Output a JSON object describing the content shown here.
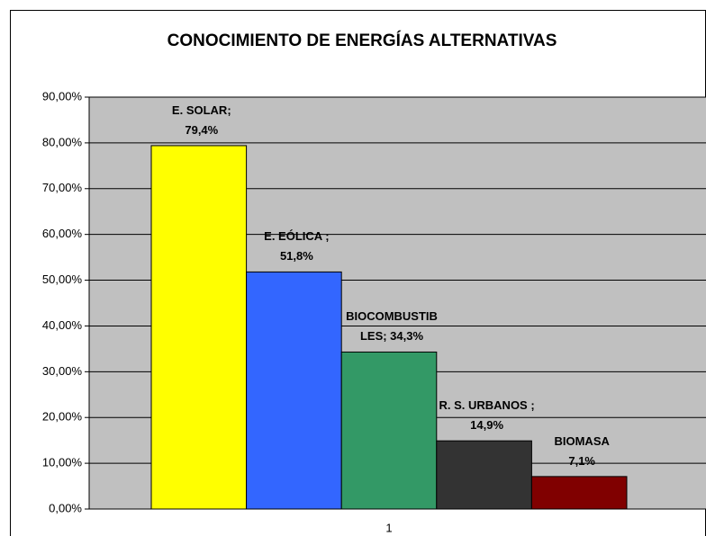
{
  "chart_data": {
    "type": "bar",
    "title": "CONOCIMIENTO DE ENERGÍAS ALTERNATIVAS",
    "categories": [
      "1"
    ],
    "series": [
      {
        "color": "#ffff00",
        "values": [
          79.4
        ],
        "value_labels": [
          "E. SOLAR;\n79,4%"
        ]
      },
      {
        "color": "#3366ff",
        "values": [
          51.8
        ],
        "value_labels": [
          "E. EÓLICA ;\n51,8%"
        ]
      },
      {
        "color": "#339966",
        "values": [
          34.3
        ],
        "value_labels": [
          "BIOCOMBUSTIB\nLES; 34,3%"
        ]
      },
      {
        "color": "#333333",
        "values": [
          14.9
        ],
        "value_labels": [
          "R. S. URBANOS ;\n14,9%"
        ]
      },
      {
        "color": "#800000",
        "values": [
          7.1
        ],
        "value_labels": [
          "BIOMASA\n7,1%"
        ]
      }
    ],
    "ylim": [
      0,
      90
    ],
    "yticks": [
      {
        "value": 0,
        "label": "0,00%"
      },
      {
        "value": 10,
        "label": "10,00%"
      },
      {
        "value": 20,
        "label": "20,00%"
      },
      {
        "value": 30,
        "label": "30,00%"
      },
      {
        "value": 40,
        "label": "40,00%"
      },
      {
        "value": 50,
        "label": "50,00%"
      },
      {
        "value": 60,
        "label": "60,00%"
      },
      {
        "value": 70,
        "label": "70,00%"
      },
      {
        "value": 80,
        "label": "80,00%"
      },
      {
        "value": 90,
        "label": "90,00%"
      }
    ],
    "grid": true,
    "plot_background": "#c0c0c0"
  }
}
